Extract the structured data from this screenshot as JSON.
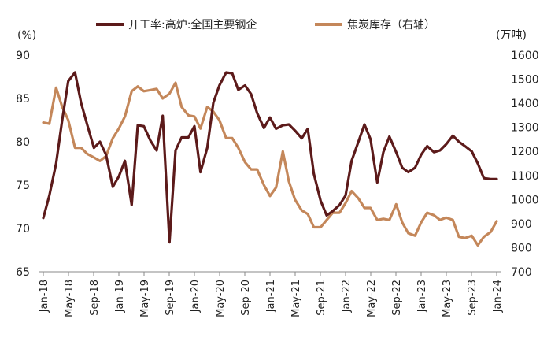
{
  "chart_data": {
    "type": "line",
    "left_unit": "(%)",
    "right_unit": "(万吨)",
    "legend_position": "top",
    "grid": false,
    "x_tick_labels": [
      "Jan-18",
      "May-18",
      "Sep-18",
      "Jan-19",
      "May-19",
      "Sep-19",
      "Jan-20",
      "May-20",
      "Sep-20",
      "Jan-21",
      "May-21",
      "Sep-21",
      "Jan-22",
      "May-22",
      "Sep-22",
      "Jan-23",
      "May-23",
      "Sep-23",
      "Jan-24"
    ],
    "left_axis": {
      "min": 65,
      "max": 90,
      "ticks": [
        65,
        70,
        75,
        80,
        85,
        90
      ]
    },
    "right_axis": {
      "min": 700,
      "max": 1600,
      "ticks": [
        700,
        800,
        900,
        1000,
        1100,
        1200,
        1300,
        1400,
        1500,
        1600
      ]
    },
    "series": [
      {
        "name": "开工率:高炉:全国主要钢企",
        "axis": "left",
        "color": "#5c1a1a",
        "x": [
          2018.0,
          2018.08,
          2018.17,
          2018.25,
          2018.33,
          2018.42,
          2018.5,
          2018.58,
          2018.67,
          2018.75,
          2018.83,
          2018.92,
          2019.0,
          2019.08,
          2019.17,
          2019.25,
          2019.33,
          2019.42,
          2019.5,
          2019.58,
          2019.67,
          2019.75,
          2019.83,
          2019.92,
          2020.0,
          2020.08,
          2020.17,
          2020.25,
          2020.33,
          2020.42,
          2020.5,
          2020.58,
          2020.67,
          2020.75,
          2020.83,
          2020.92,
          2021.0,
          2021.08,
          2021.17,
          2021.25,
          2021.33,
          2021.42,
          2021.5,
          2021.58,
          2021.67,
          2021.75,
          2021.83,
          2021.92,
          2022.0,
          2022.08,
          2022.17,
          2022.25,
          2022.33,
          2022.42,
          2022.5,
          2022.58,
          2022.67,
          2022.75,
          2022.83,
          2022.92,
          2023.0,
          2023.08,
          2023.17,
          2023.25,
          2023.33,
          2023.42,
          2023.5,
          2023.58,
          2023.67,
          2023.75,
          2023.83,
          2023.92,
          2024.0
        ],
        "values": [
          71.2,
          73.8,
          77.5,
          82.5,
          87.0,
          88.0,
          84.5,
          82.0,
          79.3,
          80.0,
          78.5,
          74.8,
          76.0,
          77.8,
          72.7,
          81.9,
          81.8,
          80.1,
          79.0,
          83.0,
          68.4,
          79.0,
          80.5,
          80.5,
          81.8,
          76.5,
          79.3,
          84.5,
          86.5,
          88.0,
          87.9,
          86.0,
          86.5,
          85.5,
          83.3,
          81.6,
          82.8,
          81.5,
          81.9,
          82.0,
          81.3,
          80.4,
          81.5,
          76.3,
          73.2,
          71.5,
          72.0,
          72.7,
          73.8,
          77.8,
          80.0,
          82.0,
          80.3,
          75.3,
          78.8,
          80.6,
          78.8,
          77.0,
          76.5,
          77.0,
          78.5,
          79.5,
          78.8,
          79.0,
          79.7,
          80.7,
          80.0,
          79.5,
          78.9,
          77.5,
          75.8,
          75.7,
          75.7
        ]
      },
      {
        "name": "焦炭库存（右轴）",
        "axis": "right",
        "color": "#c4875a",
        "x": [
          2018.0,
          2018.08,
          2018.17,
          2018.25,
          2018.33,
          2018.42,
          2018.5,
          2018.58,
          2018.67,
          2018.75,
          2018.83,
          2018.92,
          2019.0,
          2019.08,
          2019.17,
          2019.25,
          2019.33,
          2019.42,
          2019.5,
          2019.58,
          2019.67,
          2019.75,
          2019.83,
          2019.92,
          2020.0,
          2020.08,
          2020.17,
          2020.25,
          2020.33,
          2020.42,
          2020.5,
          2020.58,
          2020.67,
          2020.75,
          2020.83,
          2020.92,
          2021.0,
          2021.08,
          2021.17,
          2021.25,
          2021.33,
          2021.42,
          2021.5,
          2021.58,
          2021.67,
          2021.75,
          2021.83,
          2021.92,
          2022.0,
          2022.08,
          2022.17,
          2022.25,
          2022.33,
          2022.42,
          2022.5,
          2022.58,
          2022.67,
          2022.75,
          2022.83,
          2022.92,
          2023.0,
          2023.08,
          2023.17,
          2023.25,
          2023.33,
          2023.42,
          2023.5,
          2023.58,
          2023.67,
          2023.75,
          2023.83,
          2023.92,
          2024.0
        ],
        "values": [
          1320,
          1315,
          1465,
          1385,
          1330,
          1215,
          1215,
          1190,
          1175,
          1160,
          1180,
          1255,
          1295,
          1345,
          1450,
          1470,
          1450,
          1455,
          1460,
          1420,
          1440,
          1485,
          1385,
          1350,
          1345,
          1295,
          1385,
          1365,
          1330,
          1255,
          1255,
          1215,
          1155,
          1125,
          1125,
          1060,
          1015,
          1050,
          1200,
          1075,
          1000,
          955,
          940,
          885,
          885,
          915,
          945,
          945,
          985,
          1035,
          1005,
          965,
          965,
          915,
          920,
          915,
          980,
          905,
          860,
          850,
          905,
          945,
          935,
          915,
          925,
          915,
          845,
          840,
          850,
          810,
          845,
          865,
          910
        ]
      }
    ]
  }
}
